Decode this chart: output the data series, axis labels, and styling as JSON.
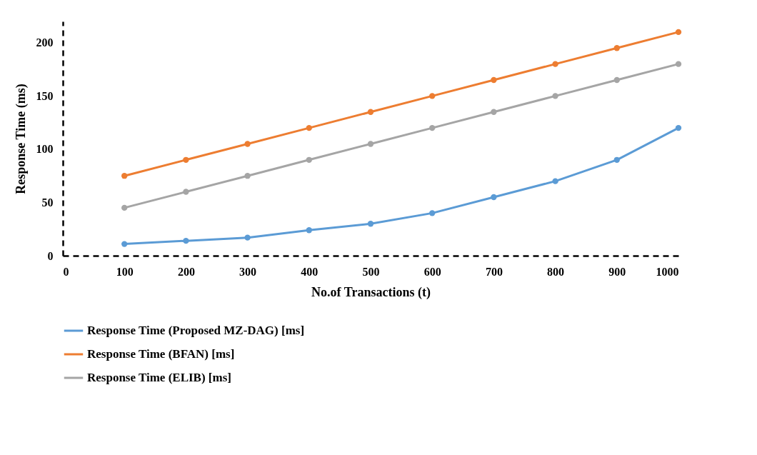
{
  "chart_data": {
    "type": "line",
    "xlabel": "No.of Transactions (t)",
    "ylabel": "Response Time   (ms)",
    "x": [
      100,
      200,
      300,
      400,
      500,
      600,
      700,
      800,
      900,
      1000
    ],
    "xlim": [
      0,
      1000
    ],
    "xticks": [
      0,
      100,
      200,
      300,
      400,
      500,
      600,
      700,
      800,
      900,
      1000
    ],
    "ylim": [
      0,
      220
    ],
    "yticks": [
      0,
      50,
      100,
      150,
      200
    ],
    "grid": false,
    "legend": "bottom",
    "marker": "circle",
    "line_style": "solid",
    "series": [
      {
        "name": "Response Time (Proposed MZ-DAG) [ms]",
        "color": "#5b9bd5",
        "values": [
          11,
          14,
          17,
          24,
          30,
          40,
          55,
          70,
          90,
          120
        ]
      },
      {
        "name": "Response Time (BFAN) [ms]",
        "color": "#ed7d31",
        "values": [
          75,
          90,
          105,
          120,
          135,
          150,
          165,
          180,
          195,
          210
        ]
      },
      {
        "name": "Response Time (ELIB) [ms]",
        "color": "#a5a5a5",
        "values": [
          45,
          60,
          75,
          90,
          105,
          120,
          135,
          150,
          165,
          180
        ]
      }
    ]
  }
}
